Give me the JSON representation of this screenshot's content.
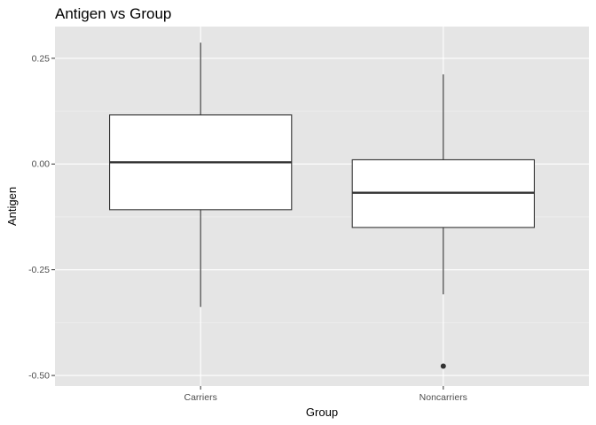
{
  "chart_data": {
    "type": "boxplot",
    "title": "Antigen vs Group",
    "xlabel": "Group",
    "ylabel": "Antigen",
    "ylim": [
      -0.525,
      0.325
    ],
    "yticks": [
      -0.5,
      -0.25,
      0.0,
      0.25
    ],
    "ytick_labels": [
      "-0.50",
      "-0.25",
      "0.00",
      "0.25"
    ],
    "grid": true,
    "colors": {
      "panel_background": "#e5e5e5",
      "grid_major": "#ffffff",
      "grid_minor": "#f0f0f0",
      "box_fill": "#ffffff",
      "box_stroke": "#333333",
      "outlier": "#333333"
    },
    "categories": [
      "Carriers",
      "Noncarriers"
    ],
    "boxes": [
      {
        "group": "Carriers",
        "whisker_low": -0.338,
        "q1": -0.108,
        "median": 0.004,
        "q3": 0.116,
        "whisker_high": 0.287,
        "outliers": []
      },
      {
        "group": "Noncarriers",
        "whisker_low": -0.308,
        "q1": -0.15,
        "median": -0.068,
        "q3": 0.01,
        "whisker_high": 0.212,
        "outliers": [
          -0.478
        ]
      }
    ]
  }
}
